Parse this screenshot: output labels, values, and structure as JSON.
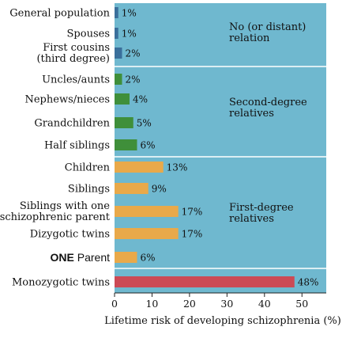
{
  "chart_data": {
    "type": "bar",
    "orientation": "horizontal",
    "title": "",
    "xlabel": "Lifetime risk of developing schizophrenia (%)",
    "ylabel": "",
    "xlim": [
      0,
      55
    ],
    "xticks": [
      0,
      10,
      20,
      30,
      40,
      50
    ],
    "grid": false,
    "panel_color": "#6fb8cf",
    "categories": [
      {
        "label": [
          "General population"
        ],
        "value": 1,
        "value_label": "1%",
        "color": "#3a6f9b"
      },
      {
        "label": [
          "Spouses"
        ],
        "value": 1,
        "value_label": "1%",
        "color": "#3a6f9b"
      },
      {
        "label": [
          "First cousins",
          "(third degree)"
        ],
        "value": 2,
        "value_label": "2%",
        "color": "#3a6f9b"
      },
      {
        "label": [
          "Uncles/aunts"
        ],
        "value": 2,
        "value_label": "2%",
        "color": "#3f8f3a"
      },
      {
        "label": [
          "Nephews/nieces"
        ],
        "value": 4,
        "value_label": "4%",
        "color": "#3f8f3a"
      },
      {
        "label": [
          "Grandchildren"
        ],
        "value": 5,
        "value_label": "5%",
        "color": "#3f8f3a"
      },
      {
        "label": [
          "Half siblings"
        ],
        "value": 6,
        "value_label": "6%",
        "color": "#3f8f3a"
      },
      {
        "label": [
          "Children"
        ],
        "value": 13,
        "value_label": "13%",
        "color": "#e9a94a"
      },
      {
        "label": [
          "Siblings"
        ],
        "value": 9,
        "value_label": "9%",
        "color": "#e9a94a"
      },
      {
        "label": [
          "Siblings with one",
          "schizophrenic parent"
        ],
        "value": 17,
        "value_label": "17%",
        "color": "#e9a94a"
      },
      {
        "label": [
          "Dizygotic twins"
        ],
        "value": 17,
        "value_label": "17%",
        "color": "#e9a94a"
      },
      {
        "label_bold": "ONE",
        "label_rest": " Parent",
        "value": 6,
        "value_label": "6%",
        "color": "#e9a94a"
      },
      {
        "label": [
          "Monozygotic twins"
        ],
        "value": 48,
        "value_label": "48%",
        "color": "#cc4a55"
      }
    ],
    "groups": [
      {
        "label": [
          "No (or distant)",
          "relation"
        ]
      },
      {
        "label": [
          "Second-degree",
          "relatives"
        ]
      },
      {
        "label": [
          "First-degree",
          "relatives"
        ]
      }
    ]
  }
}
